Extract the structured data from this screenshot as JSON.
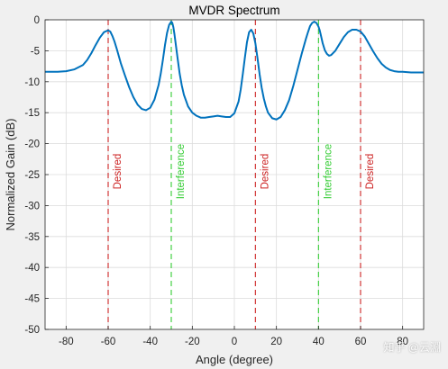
{
  "chart_data": {
    "type": "line",
    "title": "MVDR Spectrum",
    "xlabel": "Angle (degree)",
    "ylabel": "Normalized Gain (dB)",
    "xlim": [
      -90,
      90
    ],
    "ylim": [
      -50,
      0
    ],
    "xticks": [
      -80,
      -60,
      -40,
      -20,
      0,
      20,
      40,
      60,
      80
    ],
    "yticks": [
      0,
      -5,
      -10,
      -15,
      -20,
      -25,
      -30,
      -35,
      -40,
      -45,
      -50
    ],
    "grid": true,
    "line_color": "#0072BD",
    "series": [
      {
        "x": [
          -90,
          -84,
          -80,
          -76,
          -72,
          -70,
          -68,
          -66,
          -64,
          -62,
          -60,
          -59,
          -58,
          -57,
          -56,
          -55,
          -54,
          -52,
          -50,
          -48,
          -46,
          -44,
          -42,
          -40,
          -38,
          -36,
          -35,
          -34,
          -33,
          -32,
          -31,
          -30,
          -29.5,
          -29,
          -28.5,
          -28,
          -27,
          -26,
          -25,
          -24,
          -22,
          -20,
          -18,
          -16,
          -14,
          -12,
          -10,
          -8,
          -6,
          -4,
          -2,
          0,
          2,
          3,
          4,
          5,
          6,
          7,
          8,
          9,
          10,
          11,
          12,
          13,
          14,
          15,
          16,
          18,
          20,
          22,
          24,
          26,
          28,
          30,
          32,
          34,
          35,
          36,
          37,
          38,
          39,
          40,
          40.5,
          41,
          42,
          43,
          44,
          45,
          46,
          48,
          50,
          52,
          54,
          56,
          58,
          60,
          62,
          64,
          66,
          68,
          70,
          72,
          74,
          76,
          78,
          80,
          84,
          90
        ],
        "y": [
          -8.4,
          -8.4,
          -8.3,
          -8.0,
          -7.3,
          -6.5,
          -5.4,
          -4.1,
          -2.9,
          -2.0,
          -1.7,
          -1.9,
          -2.6,
          -3.5,
          -4.6,
          -5.8,
          -7.0,
          -9.0,
          -10.9,
          -12.5,
          -13.7,
          -14.4,
          -14.6,
          -14.2,
          -12.9,
          -10.5,
          -8.7,
          -6.5,
          -4.1,
          -2.1,
          -0.8,
          -0.3,
          -0.5,
          -1.2,
          -2.3,
          -3.6,
          -6.2,
          -8.7,
          -10.6,
          -12.1,
          -14.0,
          -15.0,
          -15.5,
          -15.8,
          -15.8,
          -15.7,
          -15.6,
          -15.5,
          -15.6,
          -15.7,
          -15.7,
          -15.1,
          -13.2,
          -11.3,
          -8.8,
          -6.1,
          -3.6,
          -2.0,
          -1.6,
          -2.2,
          -3.8,
          -6.2,
          -8.8,
          -11.0,
          -12.7,
          -14.0,
          -15.0,
          -15.9,
          -16.1,
          -15.7,
          -14.6,
          -13.0,
          -10.7,
          -8.1,
          -5.5,
          -3.1,
          -2.0,
          -1.0,
          -0.5,
          -0.3,
          -0.5,
          -1.1,
          -1.6,
          -2.3,
          -3.8,
          -4.9,
          -5.5,
          -5.8,
          -5.7,
          -5.0,
          -3.9,
          -2.8,
          -2.0,
          -1.6,
          -1.6,
          -1.9,
          -2.7,
          -3.9,
          -5.1,
          -6.2,
          -7.1,
          -7.7,
          -8.1,
          -8.3,
          -8.4,
          -8.4,
          -8.5,
          -8.5
        ]
      }
    ],
    "markers": [
      {
        "x": -60,
        "label": "Desired",
        "color": "#CC2222"
      },
      {
        "x": -30,
        "label": "Interference",
        "color": "#33CC33"
      },
      {
        "x": 10,
        "label": "Desired",
        "color": "#CC2222"
      },
      {
        "x": 40,
        "label": "Interference",
        "color": "#33CC33"
      },
      {
        "x": 60,
        "label": "Desired",
        "color": "#CC2222"
      }
    ],
    "marker_label_y": -24.5
  },
  "watermark": "知乎 @云淵"
}
